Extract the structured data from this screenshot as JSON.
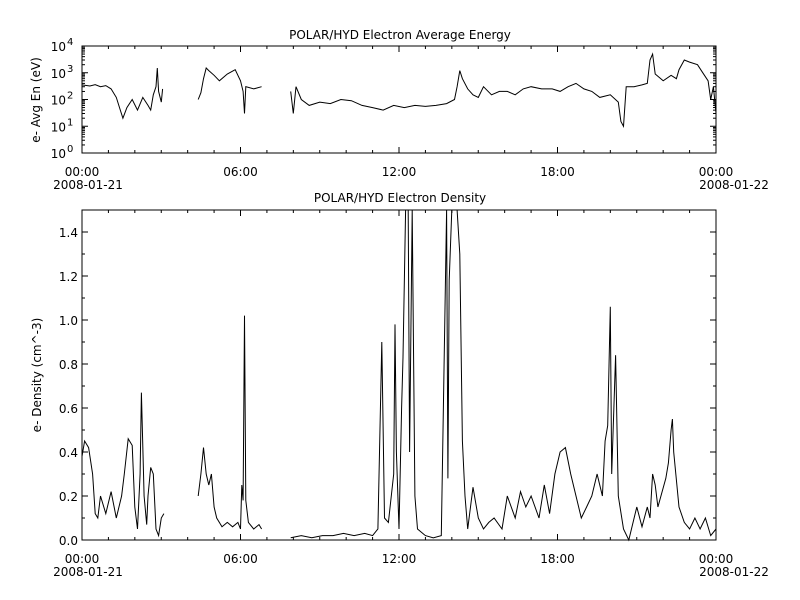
{
  "chart_data": [
    {
      "type": "line",
      "title": "POLAR/HYD  Electron Average Energy",
      "ylabel": "e- Avg En (eV)",
      "yscale": "log",
      "ylim": [
        1,
        10000
      ],
      "yticks": [
        {
          "base": "10",
          "exp": "0",
          "value": 1
        },
        {
          "base": "10",
          "exp": "1",
          "value": 10
        },
        {
          "base": "10",
          "exp": "2",
          "value": 100
        },
        {
          "base": "10",
          "exp": "3",
          "value": 1000
        },
        {
          "base": "10",
          "exp": "4",
          "value": 10000
        }
      ],
      "xlim_hours": [
        0,
        24
      ],
      "xticks": [
        {
          "hour": 0,
          "label": "00:00"
        },
        {
          "hour": 6,
          "label": "06:00"
        },
        {
          "hour": 12,
          "label": "12:00"
        },
        {
          "hour": 18,
          "label": "18:00"
        },
        {
          "hour": 24,
          "label": "00:00"
        }
      ],
      "date_start": "2008-01-21",
      "date_end": "2008-01-22",
      "series": [
        {
          "values": [
            [
              0.0,
              350
            ],
            [
              0.3,
              320
            ],
            [
              0.5,
              360
            ],
            [
              0.7,
              300
            ],
            [
              0.9,
              330
            ],
            [
              1.1,
              250
            ],
            [
              1.3,
              120
            ],
            [
              1.45,
              40
            ],
            [
              1.55,
              20
            ],
            [
              1.7,
              50
            ],
            [
              1.9,
              100
            ],
            [
              2.1,
              40
            ],
            [
              2.3,
              120
            ],
            [
              2.5,
              60
            ],
            [
              2.6,
              40
            ],
            [
              2.7,
              150
            ],
            [
              2.8,
              300
            ],
            [
              2.85,
              1500
            ],
            [
              2.9,
              200
            ],
            [
              3.0,
              80
            ],
            [
              3.05,
              250
            ]
          ]
        },
        {
          "values": [
            [
              4.4,
              100
            ],
            [
              4.5,
              180
            ],
            [
              4.6,
              600
            ],
            [
              4.7,
              1500
            ],
            [
              4.8,
              1200
            ],
            [
              5.0,
              800
            ],
            [
              5.2,
              500
            ],
            [
              5.5,
              900
            ],
            [
              5.8,
              1300
            ],
            [
              6.0,
              500
            ],
            [
              6.1,
              200
            ],
            [
              6.15,
              30
            ],
            [
              6.2,
              300
            ],
            [
              6.5,
              250
            ],
            [
              6.8,
              300
            ]
          ]
        },
        {
          "values": [
            [
              7.9,
              200
            ],
            [
              8.0,
              30
            ],
            [
              8.1,
              300
            ],
            [
              8.3,
              100
            ],
            [
              8.6,
              60
            ],
            [
              9.0,
              80
            ],
            [
              9.4,
              70
            ],
            [
              9.8,
              100
            ],
            [
              10.2,
              90
            ],
            [
              10.6,
              60
            ],
            [
              11.0,
              50
            ],
            [
              11.4,
              40
            ],
            [
              11.8,
              60
            ],
            [
              12.2,
              50
            ],
            [
              12.6,
              60
            ],
            [
              13.0,
              55
            ],
            [
              13.4,
              60
            ],
            [
              13.8,
              70
            ],
            [
              14.1,
              100
            ],
            [
              14.2,
              300
            ],
            [
              14.3,
              1200
            ],
            [
              14.4,
              600
            ],
            [
              14.6,
              250
            ],
            [
              14.8,
              150
            ],
            [
              15.0,
              120
            ],
            [
              15.2,
              300
            ],
            [
              15.5,
              150
            ],
            [
              15.8,
              200
            ],
            [
              16.1,
              200
            ],
            [
              16.4,
              150
            ],
            [
              16.7,
              250
            ],
            [
              17.0,
              300
            ],
            [
              17.4,
              250
            ],
            [
              17.8,
              250
            ],
            [
              18.1,
              200
            ],
            [
              18.4,
              300
            ],
            [
              18.7,
              400
            ],
            [
              19.0,
              250
            ],
            [
              19.3,
              200
            ],
            [
              19.6,
              120
            ],
            [
              20.0,
              150
            ],
            [
              20.3,
              80
            ],
            [
              20.4,
              15
            ],
            [
              20.5,
              10
            ],
            [
              20.6,
              300
            ],
            [
              20.9,
              300
            ],
            [
              21.2,
              350
            ],
            [
              21.4,
              400
            ],
            [
              21.5,
              3000
            ],
            [
              21.6,
              5000
            ],
            [
              21.7,
              900
            ],
            [
              22.0,
              500
            ],
            [
              22.3,
              800
            ],
            [
              22.5,
              600
            ],
            [
              22.6,
              1300
            ],
            [
              22.8,
              3000
            ],
            [
              23.0,
              2500
            ],
            [
              23.3,
              2000
            ],
            [
              23.5,
              1000
            ],
            [
              23.7,
              500
            ],
            [
              23.8,
              100
            ],
            [
              23.9,
              300
            ],
            [
              24.0,
              30
            ]
          ]
        }
      ]
    },
    {
      "type": "line",
      "title": "POLAR/HYD  Electron Density",
      "ylabel": "e- Density (cm^-3)",
      "ylim": [
        0,
        1.5
      ],
      "yticks": [
        0.0,
        0.2,
        0.4,
        0.6,
        0.8,
        1.0,
        1.2,
        1.4
      ],
      "ytick_labels": [
        "0.0",
        "0.2",
        "0.4",
        "0.6",
        "0.8",
        "1.0",
        "1.2",
        "1.4"
      ],
      "xlim_hours": [
        0,
        24
      ],
      "xticks": [
        {
          "hour": 0,
          "label": "00:00"
        },
        {
          "hour": 6,
          "label": "06:00"
        },
        {
          "hour": 12,
          "label": "12:00"
        },
        {
          "hour": 18,
          "label": "18:00"
        },
        {
          "hour": 24,
          "label": "00:00"
        }
      ],
      "date_start": "2008-01-21",
      "date_end": "2008-01-22",
      "series": [
        {
          "values": [
            [
              0.0,
              0.38
            ],
            [
              0.1,
              0.45
            ],
            [
              0.25,
              0.42
            ],
            [
              0.4,
              0.3
            ],
            [
              0.5,
              0.12
            ],
            [
              0.6,
              0.1
            ],
            [
              0.7,
              0.2
            ],
            [
              0.9,
              0.12
            ],
            [
              1.1,
              0.22
            ],
            [
              1.3,
              0.1
            ],
            [
              1.5,
              0.2
            ],
            [
              1.6,
              0.3
            ],
            [
              1.75,
              0.46
            ],
            [
              1.9,
              0.43
            ],
            [
              2.0,
              0.15
            ],
            [
              2.1,
              0.05
            ],
            [
              2.2,
              0.3
            ],
            [
              2.25,
              0.67
            ],
            [
              2.35,
              0.2
            ],
            [
              2.45,
              0.07
            ],
            [
              2.5,
              0.2
            ],
            [
              2.6,
              0.33
            ],
            [
              2.7,
              0.3
            ],
            [
              2.8,
              0.05
            ],
            [
              2.9,
              0.02
            ],
            [
              3.0,
              0.1
            ],
            [
              3.1,
              0.12
            ]
          ]
        },
        {
          "values": [
            [
              4.4,
              0.2
            ],
            [
              4.5,
              0.3
            ],
            [
              4.6,
              0.42
            ],
            [
              4.7,
              0.3
            ],
            [
              4.8,
              0.25
            ],
            [
              4.9,
              0.3
            ],
            [
              5.0,
              0.15
            ],
            [
              5.1,
              0.1
            ],
            [
              5.3,
              0.06
            ],
            [
              5.5,
              0.08
            ],
            [
              5.7,
              0.06
            ],
            [
              5.9,
              0.08
            ],
            [
              6.0,
              0.05
            ],
            [
              6.05,
              0.25
            ],
            [
              6.1,
              0.18
            ],
            [
              6.15,
              1.02
            ],
            [
              6.2,
              0.18
            ],
            [
              6.3,
              0.08
            ],
            [
              6.5,
              0.05
            ],
            [
              6.7,
              0.07
            ],
            [
              6.8,
              0.05
            ]
          ]
        },
        {
          "values": [
            [
              7.9,
              0.01
            ],
            [
              8.3,
              0.02
            ],
            [
              8.7,
              0.01
            ],
            [
              9.1,
              0.02
            ],
            [
              9.5,
              0.02
            ],
            [
              9.9,
              0.03
            ],
            [
              10.3,
              0.02
            ],
            [
              10.7,
              0.03
            ],
            [
              11.0,
              0.02
            ],
            [
              11.2,
              0.05
            ],
            [
              11.35,
              0.9
            ],
            [
              11.45,
              0.1
            ],
            [
              11.6,
              0.08
            ],
            [
              11.8,
              0.3
            ],
            [
              11.85,
              0.98
            ],
            [
              11.9,
              0.4
            ],
            [
              12.0,
              0.05
            ],
            [
              12.1,
              0.6
            ],
            [
              12.15,
              0.83
            ],
            [
              12.25,
              1.5
            ],
            [
              12.35,
              1.5
            ],
            [
              12.4,
              0.4
            ],
            [
              12.5,
              1.5
            ],
            [
              12.6,
              0.2
            ],
            [
              12.7,
              0.05
            ],
            [
              13.0,
              0.02
            ],
            [
              13.3,
              0.01
            ],
            [
              13.6,
              0.02
            ],
            [
              13.8,
              1.5
            ],
            [
              13.85,
              0.28
            ],
            [
              13.9,
              1.18
            ],
            [
              14.0,
              1.5
            ],
            [
              14.2,
              1.5
            ],
            [
              14.3,
              1.3
            ],
            [
              14.4,
              0.45
            ],
            [
              14.5,
              0.2
            ],
            [
              14.6,
              0.05
            ],
            [
              14.8,
              0.24
            ],
            [
              15.0,
              0.1
            ],
            [
              15.2,
              0.05
            ],
            [
              15.4,
              0.08
            ],
            [
              15.6,
              0.1
            ],
            [
              15.9,
              0.05
            ],
            [
              16.1,
              0.2
            ],
            [
              16.4,
              0.1
            ],
            [
              16.6,
              0.22
            ],
            [
              16.8,
              0.15
            ],
            [
              17.0,
              0.2
            ],
            [
              17.3,
              0.1
            ],
            [
              17.5,
              0.25
            ],
            [
              17.7,
              0.12
            ],
            [
              17.9,
              0.3
            ],
            [
              18.1,
              0.4
            ],
            [
              18.3,
              0.42
            ],
            [
              18.5,
              0.3
            ],
            [
              18.7,
              0.2
            ],
            [
              18.9,
              0.1
            ],
            [
              19.1,
              0.15
            ],
            [
              19.3,
              0.2
            ],
            [
              19.5,
              0.3
            ],
            [
              19.7,
              0.2
            ],
            [
              19.8,
              0.45
            ],
            [
              19.9,
              0.52
            ],
            [
              20.0,
              1.06
            ],
            [
              20.05,
              0.3
            ],
            [
              20.2,
              0.84
            ],
            [
              20.3,
              0.2
            ],
            [
              20.5,
              0.05
            ],
            [
              20.7,
              0.0
            ],
            [
              21.0,
              0.15
            ],
            [
              21.2,
              0.06
            ],
            [
              21.4,
              0.15
            ],
            [
              21.5,
              0.1
            ],
            [
              21.6,
              0.3
            ],
            [
              21.7,
              0.25
            ],
            [
              21.8,
              0.15
            ],
            [
              22.1,
              0.28
            ],
            [
              22.2,
              0.35
            ],
            [
              22.3,
              0.5
            ],
            [
              22.35,
              0.55
            ],
            [
              22.4,
              0.4
            ],
            [
              22.6,
              0.15
            ],
            [
              22.8,
              0.08
            ],
            [
              23.0,
              0.05
            ],
            [
              23.2,
              0.1
            ],
            [
              23.4,
              0.05
            ],
            [
              23.6,
              0.1
            ],
            [
              23.8,
              0.02
            ],
            [
              24.0,
              0.05
            ]
          ]
        }
      ]
    }
  ]
}
